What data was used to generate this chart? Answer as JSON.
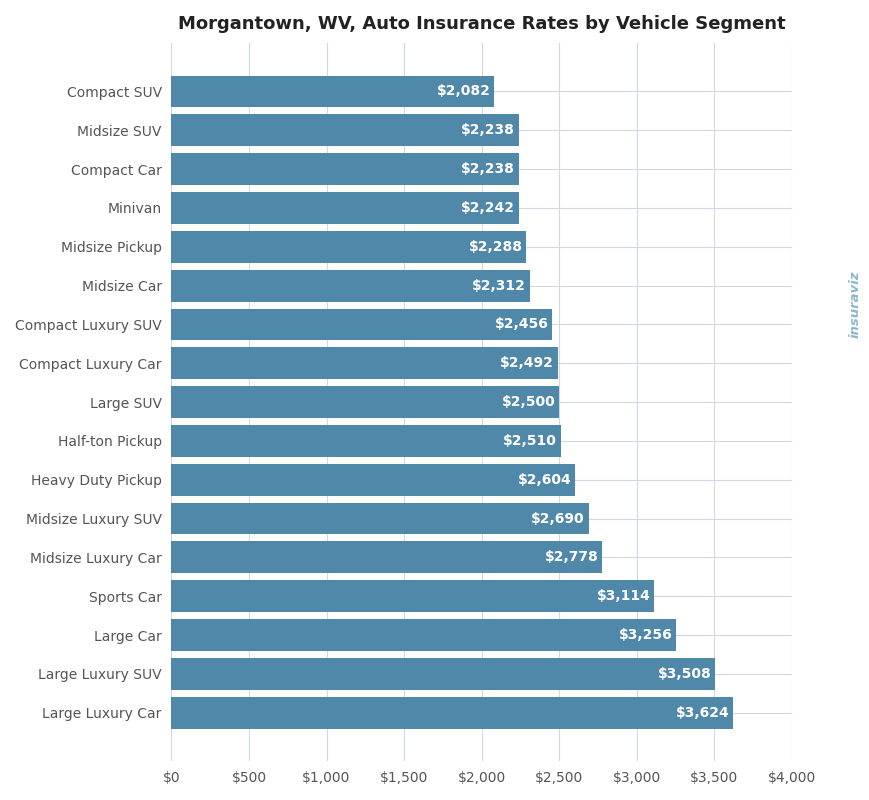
{
  "title": "Morgantown, WV, Auto Insurance Rates by Vehicle Segment",
  "categories": [
    "Compact SUV",
    "Midsize SUV",
    "Compact Car",
    "Minivan",
    "Midsize Pickup",
    "Midsize Car",
    "Compact Luxury SUV",
    "Compact Luxury Car",
    "Large SUV",
    "Half-ton Pickup",
    "Heavy Duty Pickup",
    "Midsize Luxury SUV",
    "Midsize Luxury Car",
    "Sports Car",
    "Large Car",
    "Large Luxury SUV",
    "Large Luxury Car"
  ],
  "values": [
    2082,
    2238,
    2238,
    2242,
    2288,
    2312,
    2456,
    2492,
    2500,
    2510,
    2604,
    2690,
    2778,
    3114,
    3256,
    3508,
    3624
  ],
  "bar_color": "#5088aa",
  "label_color": "#ffffff",
  "background_color": "#ffffff",
  "grid_color": "#d0d8e4",
  "xlim": [
    0,
    4000
  ],
  "xtick_values": [
    0,
    500,
    1000,
    1500,
    2000,
    2500,
    3000,
    3500,
    4000
  ],
  "title_fontsize": 13,
  "label_fontsize": 10,
  "tick_fontsize": 10,
  "bar_height": 0.82,
  "watermark_text": "insuraviz",
  "watermark_color": "#8ab8cc",
  "watermark_icon_colors": [
    "#e8a030",
    "#d060c0",
    "#60b0e0"
  ]
}
